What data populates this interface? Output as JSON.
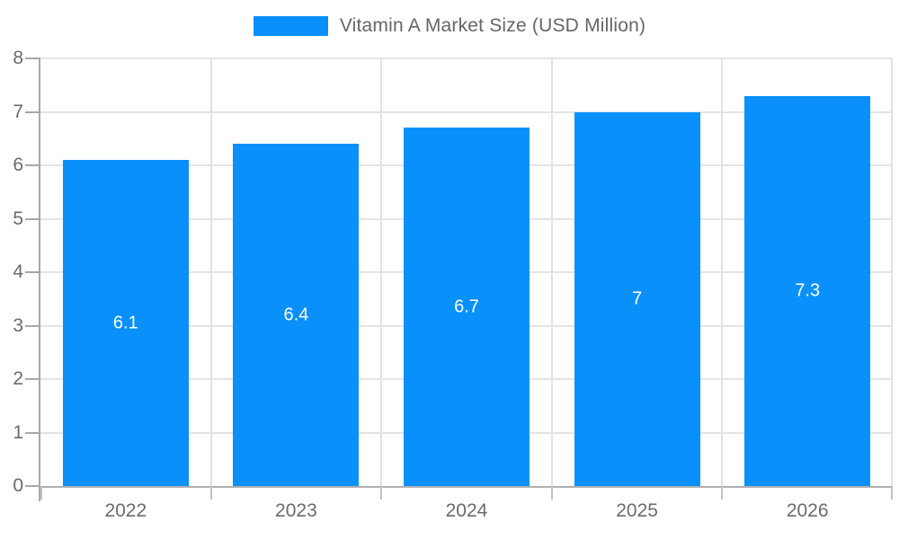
{
  "chart_data": {
    "type": "bar",
    "title": "Vitamin A Market Size (USD Million)",
    "categories": [
      "2022",
      "2023",
      "2024",
      "2025",
      "2026"
    ],
    "values": [
      6.1,
      6.4,
      6.7,
      7,
      7.3
    ],
    "bar_labels": [
      "6.1",
      "6.4",
      "6.7",
      "7",
      "7.3"
    ],
    "xlabel": "",
    "ylabel": "",
    "ylim": [
      0,
      8
    ],
    "yticks": [
      "0",
      "1",
      "2",
      "3",
      "4",
      "5",
      "6",
      "7",
      "8"
    ],
    "grid": "on",
    "legend_position": "top-center",
    "colors": {
      "bar": "#0990fa",
      "hgridline": "#e4e4e4",
      "vgridline": "#e2e2e2",
      "axis": "#a8a8a8",
      "axis_text": "#6b6b6b",
      "legend_text": "#666666",
      "bar_label_text": "#ffffff",
      "background": "#ffffff"
    }
  }
}
